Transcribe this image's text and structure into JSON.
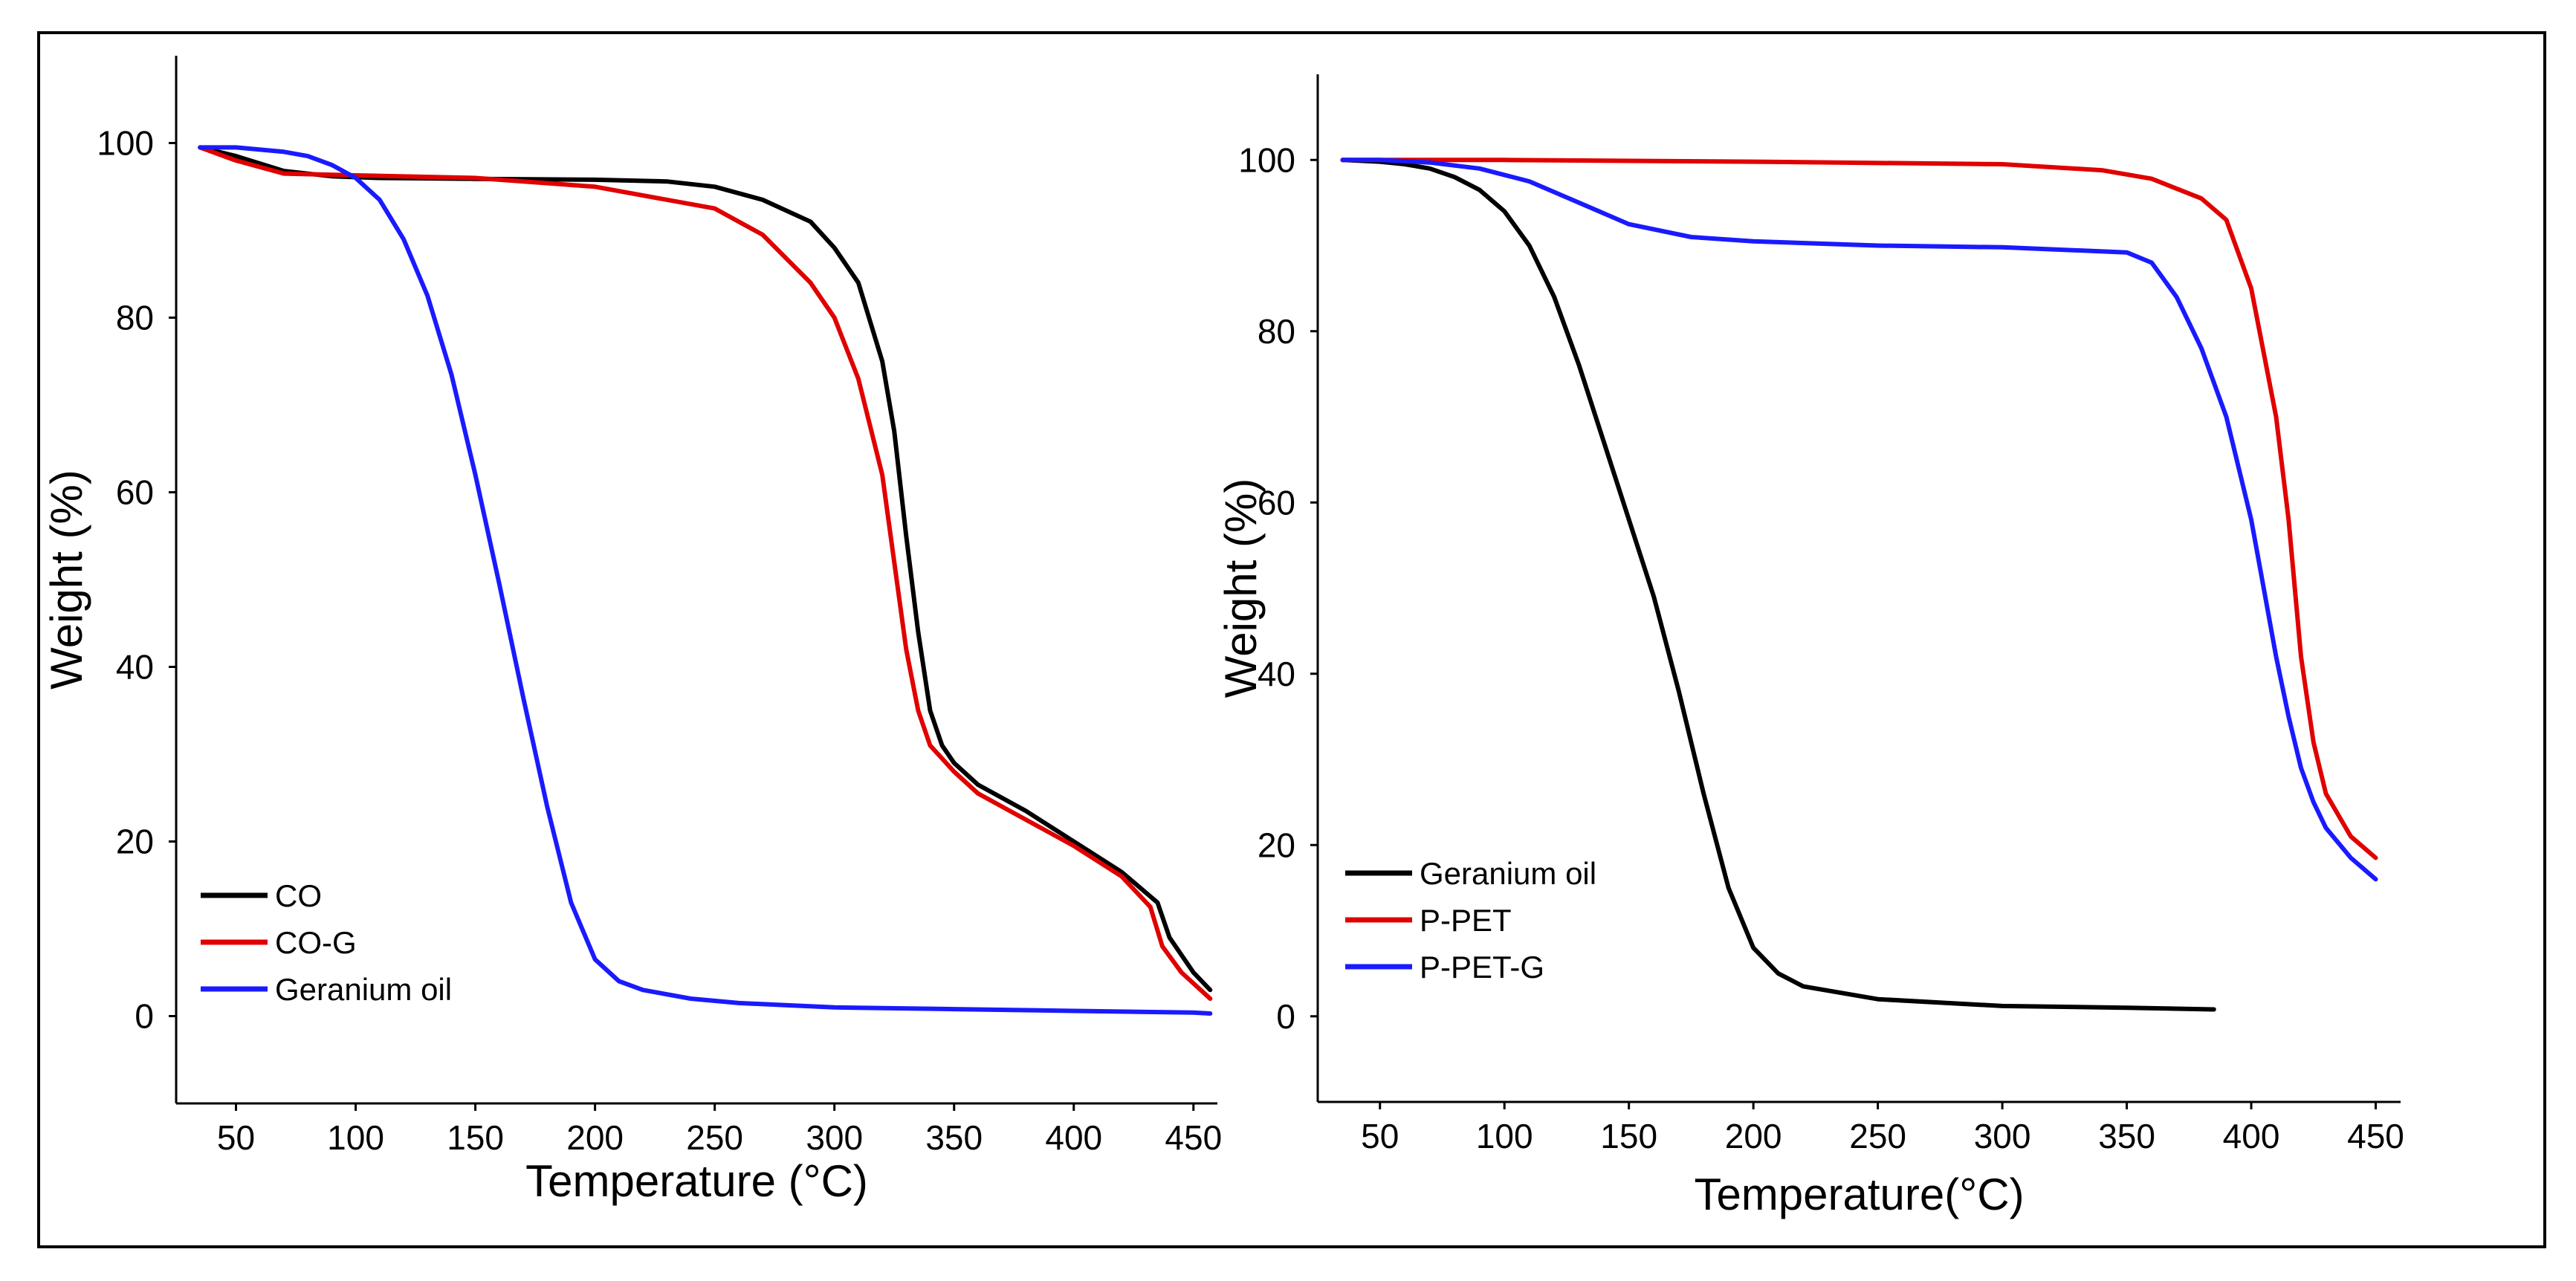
{
  "chart_data": [
    {
      "type": "line",
      "xlabel": "Temperature (°C)",
      "ylabel": "Weight (%)",
      "xlim": [
        25,
        460
      ],
      "ylim": [
        -10,
        110
      ],
      "xticks": [
        50,
        100,
        150,
        200,
        250,
        300,
        350,
        400,
        450
      ],
      "yticks": [
        0,
        20,
        40,
        60,
        80,
        100
      ],
      "legend_position": "bottom-left",
      "grid": false,
      "series": [
        {
          "name": "CO",
          "color": "#000000",
          "x": [
            35,
            50,
            70,
            90,
            110,
            150,
            200,
            230,
            250,
            270,
            290,
            300,
            310,
            320,
            325,
            330,
            335,
            340,
            345,
            350,
            360,
            380,
            400,
            420,
            435,
            440,
            445,
            450,
            457
          ],
          "y": [
            99.5,
            98.5,
            96.8,
            96.2,
            96.0,
            95.9,
            95.8,
            95.6,
            95.0,
            93.5,
            91.0,
            88.0,
            84.0,
            75.0,
            67.0,
            55.0,
            44.0,
            35.0,
            31.0,
            29.0,
            26.5,
            23.5,
            20.0,
            16.5,
            13.0,
            9.0,
            7.0,
            5.0,
            3.0
          ]
        },
        {
          "name": "CO-G",
          "color": "#e00000",
          "x": [
            35,
            50,
            70,
            100,
            150,
            200,
            250,
            270,
            290,
            300,
            310,
            320,
            325,
            330,
            335,
            340,
            350,
            360,
            380,
            400,
            420,
            432,
            437,
            445,
            457
          ],
          "y": [
            99.5,
            98.0,
            96.5,
            96.3,
            96.0,
            95.0,
            92.5,
            89.5,
            84.0,
            80.0,
            73.0,
            62.0,
            52.0,
            42.0,
            35.0,
            31.0,
            28.0,
            25.5,
            22.5,
            19.5,
            16.0,
            12.5,
            8.0,
            5.0,
            2.0
          ]
        },
        {
          "name": "Geranium oil",
          "color": "#1a1aff",
          "x": [
            35,
            50,
            70,
            80,
            90,
            100,
            110,
            120,
            130,
            140,
            150,
            160,
            170,
            180,
            190,
            200,
            210,
            220,
            240,
            260,
            300,
            350,
            400,
            450,
            457
          ],
          "y": [
            99.5,
            99.5,
            99.0,
            98.5,
            97.5,
            96.0,
            93.5,
            89.0,
            82.5,
            73.5,
            62.0,
            49.5,
            36.5,
            24.0,
            13.0,
            6.5,
            4.0,
            3.0,
            2.0,
            1.5,
            1.0,
            0.8,
            0.6,
            0.4,
            0.3
          ]
        }
      ]
    },
    {
      "type": "line",
      "xlabel": "Temperature(°C)",
      "ylabel": "Weight (%)",
      "xlim": [
        25,
        460
      ],
      "ylim": [
        -10,
        110
      ],
      "xticks": [
        50,
        100,
        150,
        200,
        250,
        300,
        350,
        400,
        450
      ],
      "yticks": [
        0,
        20,
        40,
        60,
        80,
        100
      ],
      "legend_position": "bottom-left",
      "grid": false,
      "series": [
        {
          "name": "Geranium oil",
          "color": "#000000",
          "x": [
            35,
            50,
            60,
            70,
            80,
            90,
            100,
            110,
            120,
            130,
            140,
            150,
            160,
            170,
            180,
            190,
            200,
            210,
            220,
            230,
            250,
            300,
            350,
            385
          ],
          "y": [
            100.0,
            99.8,
            99.5,
            99.0,
            98.0,
            96.5,
            94.0,
            90.0,
            84.0,
            76.0,
            67.0,
            58.0,
            49.0,
            38.0,
            26.0,
            15.0,
            8.0,
            5.0,
            3.5,
            3.0,
            2.0,
            1.2,
            1.0,
            0.8
          ]
        },
        {
          "name": "P-PET",
          "color": "#e00000",
          "x": [
            35,
            100,
            200,
            300,
            340,
            360,
            380,
            390,
            400,
            410,
            415,
            420,
            425,
            430,
            440,
            450
          ],
          "y": [
            100.0,
            100.0,
            99.8,
            99.5,
            98.8,
            97.8,
            95.5,
            93.0,
            85.0,
            70.0,
            58.0,
            42.0,
            32.0,
            26.0,
            21.0,
            18.5
          ]
        },
        {
          "name": "P-PET-G",
          "color": "#1a1aff",
          "x": [
            35,
            50,
            70,
            90,
            110,
            130,
            150,
            175,
            200,
            250,
            300,
            350,
            360,
            370,
            380,
            390,
            400,
            405,
            410,
            415,
            420,
            425,
            430,
            440,
            450
          ],
          "y": [
            100.0,
            100.0,
            99.7,
            99.0,
            97.5,
            95.0,
            92.5,
            91.0,
            90.5,
            90.0,
            89.8,
            89.2,
            88.0,
            84.0,
            78.0,
            70.0,
            58.0,
            50.0,
            42.0,
            35.0,
            29.0,
            25.0,
            22.0,
            18.5,
            16.0
          ]
        }
      ]
    }
  ]
}
